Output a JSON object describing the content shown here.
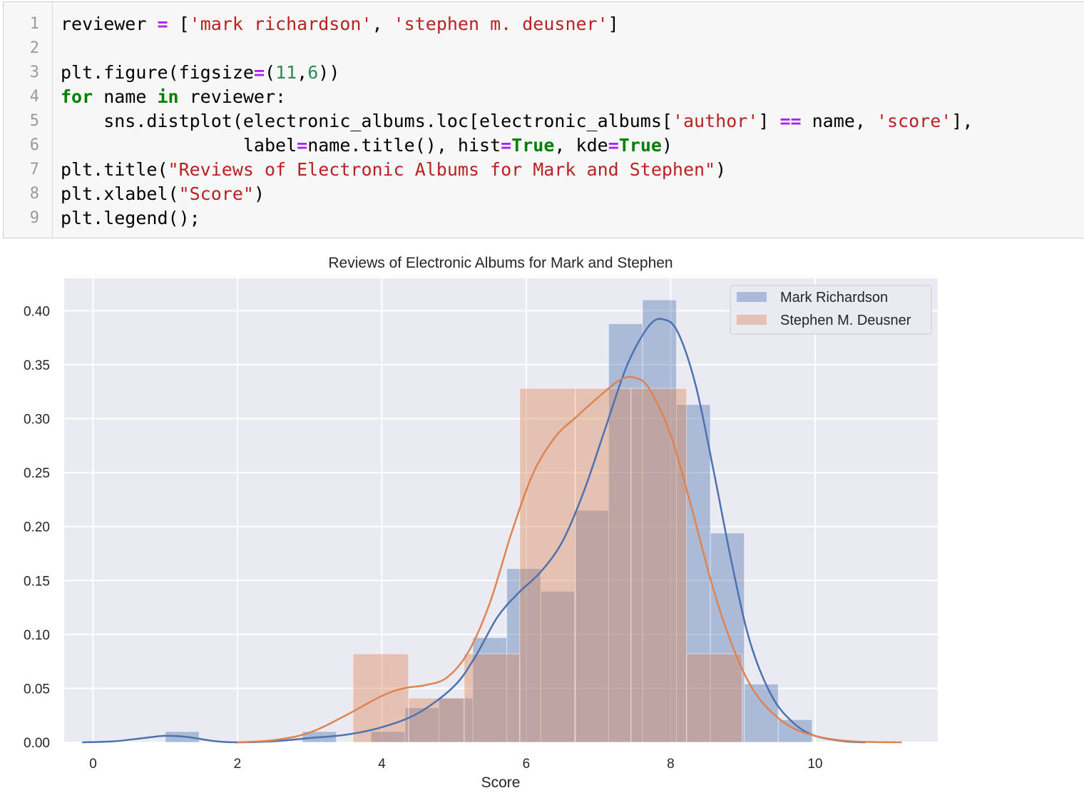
{
  "code": {
    "line_numbers": [
      "1",
      "2",
      "3",
      "4",
      "5",
      "6",
      "7",
      "8",
      "9"
    ],
    "lines": [
      [
        {
          "t": "reviewer ",
          "c": ""
        },
        {
          "t": "=",
          "c": "op"
        },
        {
          "t": " [",
          "c": ""
        },
        {
          "t": "'mark richardson'",
          "c": "str"
        },
        {
          "t": ", ",
          "c": ""
        },
        {
          "t": "'stephen m. deusner'",
          "c": "str"
        },
        {
          "t": "]",
          "c": ""
        }
      ],
      [],
      [
        {
          "t": "plt.figure(figsize",
          "c": ""
        },
        {
          "t": "=",
          "c": "op"
        },
        {
          "t": "(",
          "c": ""
        },
        {
          "t": "11",
          "c": "num"
        },
        {
          "t": ",",
          "c": ""
        },
        {
          "t": "6",
          "c": "num"
        },
        {
          "t": "))",
          "c": ""
        }
      ],
      [
        {
          "t": "for",
          "c": "kw"
        },
        {
          "t": " name ",
          "c": ""
        },
        {
          "t": "in",
          "c": "kw"
        },
        {
          "t": " reviewer:",
          "c": ""
        }
      ],
      [
        {
          "t": "    sns.distplot(electronic_albums.loc[electronic_albums[",
          "c": ""
        },
        {
          "t": "'author'",
          "c": "str"
        },
        {
          "t": "] ",
          "c": ""
        },
        {
          "t": "==",
          "c": "op"
        },
        {
          "t": " name, ",
          "c": ""
        },
        {
          "t": "'score'",
          "c": "str"
        },
        {
          "t": "],",
          "c": ""
        }
      ],
      [
        {
          "t": "                 label",
          "c": ""
        },
        {
          "t": "=",
          "c": "op"
        },
        {
          "t": "name.title(), hist",
          "c": ""
        },
        {
          "t": "=",
          "c": "op"
        },
        {
          "t": "True",
          "c": "kw"
        },
        {
          "t": ", kde",
          "c": ""
        },
        {
          "t": "=",
          "c": "op"
        },
        {
          "t": "True",
          "c": "kw"
        },
        {
          "t": ")",
          "c": ""
        }
      ],
      [
        {
          "t": "plt.title(",
          "c": ""
        },
        {
          "t": "\"Reviews of Electronic Albums for Mark and Stephen\"",
          "c": "str"
        },
        {
          "t": ")",
          "c": ""
        }
      ],
      [
        {
          "t": "plt.xlabel(",
          "c": ""
        },
        {
          "t": "\"Score\"",
          "c": "str"
        },
        {
          "t": ")",
          "c": ""
        }
      ],
      [
        {
          "t": "plt.legend();",
          "c": ""
        }
      ]
    ]
  },
  "chart_data": {
    "type": "bar",
    "title": "Reviews of Electronic Albums for Mark and Stephen",
    "xlabel": "Score",
    "ylabel": "",
    "xlim": [
      -0.4,
      11.7
    ],
    "ylim": [
      0,
      0.43
    ],
    "xticks": [
      0,
      2,
      4,
      6,
      8,
      10
    ],
    "yticks": [
      0.0,
      0.05,
      0.1,
      0.15,
      0.2,
      0.25,
      0.3,
      0.35,
      0.4
    ],
    "grid": true,
    "legend_position": "top-right",
    "colors": {
      "mark": "#4c72b0",
      "stephen": "#dd8452",
      "bg": "#eaeaf2"
    },
    "series": [
      {
        "name": "Mark Richardson",
        "bin_width": 0.47,
        "bins": [
          {
            "x": 1.0,
            "y": 0.01
          },
          {
            "x": 2.9,
            "y": 0.01
          },
          {
            "x": 3.85,
            "y": 0.01
          },
          {
            "x": 4.32,
            "y": 0.032
          },
          {
            "x": 4.79,
            "y": 0.041
          },
          {
            "x": 5.26,
            "y": 0.097
          },
          {
            "x": 5.73,
            "y": 0.161
          },
          {
            "x": 6.2,
            "y": 0.14
          },
          {
            "x": 6.67,
            "y": 0.215
          },
          {
            "x": 7.14,
            "y": 0.388
          },
          {
            "x": 7.61,
            "y": 0.41
          },
          {
            "x": 8.08,
            "y": 0.313
          },
          {
            "x": 8.55,
            "y": 0.194
          },
          {
            "x": 9.02,
            "y": 0.054
          },
          {
            "x": 9.49,
            "y": 0.021
          }
        ],
        "kde": [
          [
            -0.15,
            0.0
          ],
          [
            0.3,
            0.001
          ],
          [
            0.7,
            0.004
          ],
          [
            1.0,
            0.006
          ],
          [
            1.3,
            0.005
          ],
          [
            1.7,
            0.001
          ],
          [
            2.0,
            0.0
          ],
          [
            2.5,
            0.001
          ],
          [
            3.0,
            0.004
          ],
          [
            3.5,
            0.007
          ],
          [
            4.0,
            0.014
          ],
          [
            4.5,
            0.027
          ],
          [
            5.0,
            0.052
          ],
          [
            5.3,
            0.08
          ],
          [
            5.6,
            0.116
          ],
          [
            5.9,
            0.139
          ],
          [
            6.2,
            0.158
          ],
          [
            6.5,
            0.186
          ],
          [
            6.8,
            0.233
          ],
          [
            7.1,
            0.292
          ],
          [
            7.4,
            0.35
          ],
          [
            7.7,
            0.386
          ],
          [
            7.9,
            0.392
          ],
          [
            8.1,
            0.38
          ],
          [
            8.35,
            0.33
          ],
          [
            8.6,
            0.25
          ],
          [
            8.85,
            0.165
          ],
          [
            9.1,
            0.093
          ],
          [
            9.4,
            0.043
          ],
          [
            9.7,
            0.018
          ],
          [
            10.0,
            0.006
          ],
          [
            10.4,
            0.001
          ],
          [
            10.7,
            0.0
          ]
        ]
      },
      {
        "name": "Stephen M. Deusner",
        "bin_width": 0.77,
        "bins": [
          {
            "x": 3.6,
            "y": 0.082
          },
          {
            "x": 4.37,
            "y": 0.041
          },
          {
            "x": 5.14,
            "y": 0.082
          },
          {
            "x": 5.91,
            "y": 0.328
          },
          {
            "x": 6.68,
            "y": 0.328
          },
          {
            "x": 7.45,
            "y": 0.328
          },
          {
            "x": 8.22,
            "y": 0.082
          }
        ],
        "kde": [
          [
            2.0,
            0.0
          ],
          [
            2.5,
            0.002
          ],
          [
            3.0,
            0.009
          ],
          [
            3.5,
            0.025
          ],
          [
            4.0,
            0.043
          ],
          [
            4.3,
            0.05
          ],
          [
            4.6,
            0.053
          ],
          [
            4.9,
            0.06
          ],
          [
            5.2,
            0.084
          ],
          [
            5.5,
            0.13
          ],
          [
            5.8,
            0.195
          ],
          [
            6.1,
            0.25
          ],
          [
            6.4,
            0.283
          ],
          [
            6.7,
            0.302
          ],
          [
            7.0,
            0.32
          ],
          [
            7.3,
            0.336
          ],
          [
            7.5,
            0.338
          ],
          [
            7.7,
            0.328
          ],
          [
            8.0,
            0.285
          ],
          [
            8.3,
            0.215
          ],
          [
            8.6,
            0.14
          ],
          [
            8.9,
            0.082
          ],
          [
            9.2,
            0.043
          ],
          [
            9.6,
            0.017
          ],
          [
            10.0,
            0.006
          ],
          [
            10.5,
            0.001
          ],
          [
            11.2,
            0.0
          ]
        ]
      }
    ]
  }
}
